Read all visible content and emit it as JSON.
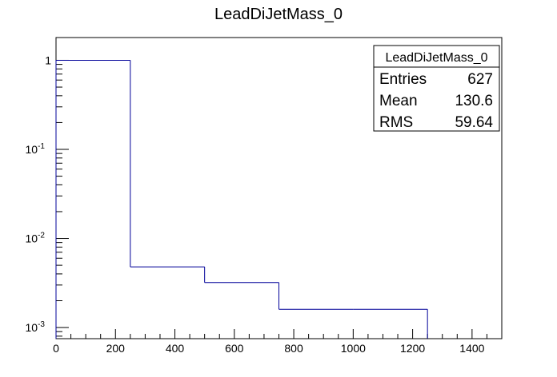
{
  "chart_data": {
    "type": "bar",
    "subtype": "histogram-step",
    "title": "LeadDiJetMass_0",
    "xlabel": "",
    "ylabel": "",
    "x_range": [
      0,
      1500
    ],
    "y_scale": "log",
    "y_range": [
      0.00075,
      1.8
    ],
    "bin_edges": [
      0,
      250,
      500,
      750,
      1000,
      1250
    ],
    "values": [
      1.0,
      0.0048,
      0.0032,
      0.0016,
      0.0016
    ],
    "x_ticks": [
      {
        "value": 0,
        "label": "0"
      },
      {
        "value": 200,
        "label": "200"
      },
      {
        "value": 400,
        "label": "400"
      },
      {
        "value": 600,
        "label": "600"
      },
      {
        "value": 800,
        "label": "800"
      },
      {
        "value": 1000,
        "label": "1000"
      },
      {
        "value": 1200,
        "label": "1200"
      },
      {
        "value": 1400,
        "label": "1400"
      }
    ],
    "y_ticks": [
      {
        "value": 1,
        "base": "1",
        "exp": ""
      },
      {
        "value": 0.1,
        "base": "10",
        "exp": "-1"
      },
      {
        "value": 0.01,
        "base": "10",
        "exp": "-2"
      },
      {
        "value": 0.001,
        "base": "10",
        "exp": "-3"
      }
    ],
    "line_color": "#000099",
    "grid": false,
    "stats_box": {
      "placement": "top-right",
      "title": "LeadDiJetMass_0",
      "rows": [
        {
          "label": "Entries",
          "value": "627"
        },
        {
          "label": "Mean",
          "value": "130.6"
        },
        {
          "label": "RMS",
          "value": "59.64"
        }
      ]
    }
  }
}
